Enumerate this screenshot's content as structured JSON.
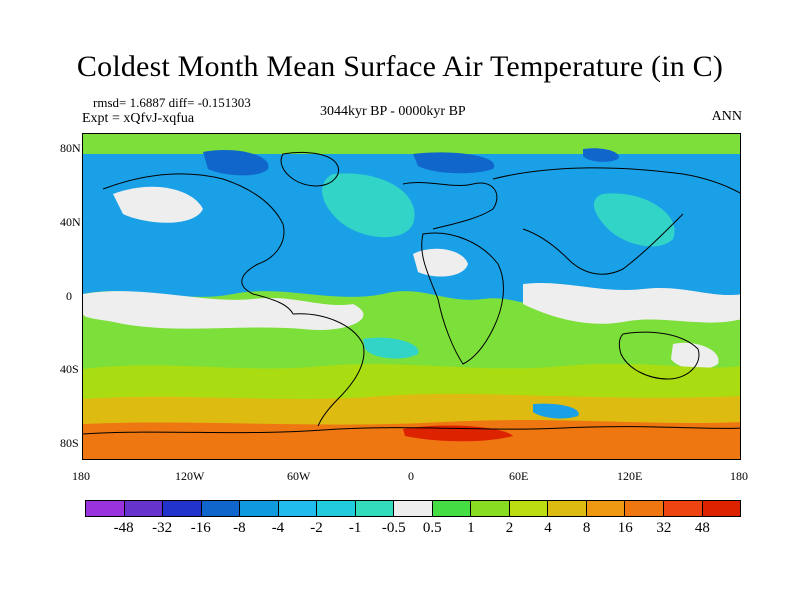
{
  "title": "Coldest Month Mean Surface Air Temperature (in C)",
  "stats_line": "rmsd= 1.6887 diff= -0.151303",
  "expt_line": "Expt = xQfvJ-xqfua",
  "period_line": "3044kyr BP - 0000kyr BP",
  "season_label": "ANN",
  "lat_labels": [
    "80N",
    "40N",
    "0",
    "40S",
    "80S"
  ],
  "lon_labels": [
    "180",
    "120W",
    "60W",
    "0",
    "60E",
    "120E",
    "180"
  ],
  "colorbar": {
    "labels": [
      "-48",
      "-32",
      "-16",
      "-8",
      "-4",
      "-2",
      "-1",
      "-0.5",
      "0.5",
      "1",
      "2",
      "4",
      "8",
      "16",
      "32",
      "48"
    ],
    "colors": [
      "#9933dd",
      "#6633cc",
      "#2233cc",
      "#1166cc",
      "#1199dd",
      "#22bbee",
      "#22ccdd",
      "#33ddbb",
      "#eeeeee",
      "#44dd44",
      "#88dd22",
      "#bbdd11",
      "#ddbb11",
      "#ee9911",
      "#ee7711",
      "#ee4411",
      "#dd2200"
    ]
  },
  "map_colors": {
    "ocean_base": "#7ddf3a",
    "cool": "#1aa0e6",
    "cool_light": "#33d4c8",
    "deep_cool": "#1166cc",
    "neutral": "#eeeeee",
    "warm": "#aadd11",
    "warmer": "#ddbb11",
    "hot": "#ee7711",
    "hottest": "#dd2200",
    "coast": "#000000"
  }
}
